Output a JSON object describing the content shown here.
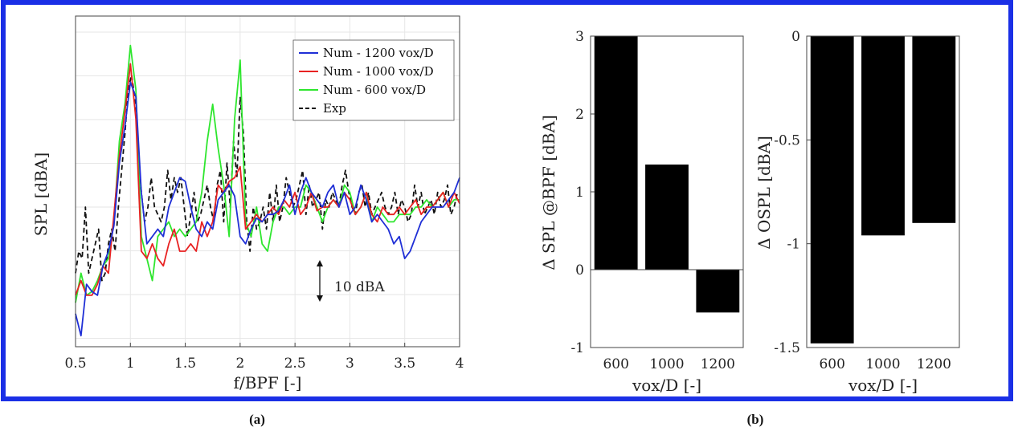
{
  "colors": {
    "frame": "#1a2fe6",
    "blue": "#1f2fd6",
    "red": "#e82222",
    "green": "#2ee62e",
    "exp": "#111111",
    "bar": "#000000",
    "grid": "#e6e6e6"
  },
  "captions": {
    "a": "(a)",
    "b": "(b)"
  },
  "annotation": {
    "scale_label": "10 dBA"
  },
  "chart_data": [
    {
      "type": "line",
      "xlabel": "f/BPF [-]",
      "ylabel": "SPL [dBA]",
      "xlim": [
        0.5,
        4
      ],
      "x_ticks": [
        "0.5",
        "1",
        "1.5",
        "2",
        "2.5",
        "3",
        "3.5",
        "4"
      ],
      "grid": true,
      "legend_position": "top-right",
      "series": [
        {
          "name": "Num - 1200 vox/D",
          "color": "#1f2fd6",
          "style": "solid",
          "x": [
            0.5,
            0.55,
            0.6,
            0.65,
            0.7,
            0.75,
            0.8,
            0.85,
            0.9,
            0.95,
            1.0,
            1.05,
            1.1,
            1.15,
            1.2,
            1.25,
            1.3,
            1.35,
            1.4,
            1.45,
            1.5,
            1.55,
            1.6,
            1.65,
            1.7,
            1.75,
            1.8,
            1.85,
            1.9,
            1.95,
            2.0,
            2.05,
            2.1,
            2.15,
            2.2,
            2.25,
            2.3,
            2.35,
            2.4,
            2.45,
            2.5,
            2.55,
            2.6,
            2.65,
            2.7,
            2.75,
            2.8,
            2.85,
            2.9,
            2.95,
            3.0,
            3.05,
            3.1,
            3.15,
            3.2,
            3.25,
            3.3,
            3.35,
            3.4,
            3.45,
            3.5,
            3.55,
            3.6,
            3.65,
            3.7,
            3.75,
            3.8,
            3.85,
            3.9,
            3.95,
            4.0
          ],
          "y": [
            -14.5,
            -17.5,
            -10.5,
            -11.5,
            -12,
            -8,
            -6,
            -2.5,
            6,
            11,
            17,
            15,
            2,
            -5,
            -4,
            -3,
            -4,
            0,
            2,
            4,
            3.5,
            0,
            -3,
            -4,
            -2,
            -3,
            1,
            2,
            3,
            1.5,
            -4,
            -5,
            -3,
            -1.5,
            -2,
            -1,
            -1,
            -0.5,
            1,
            3,
            -1,
            2,
            4,
            2,
            1,
            0,
            2,
            3,
            0,
            2,
            -1,
            0,
            3,
            1,
            -2,
            -1,
            -2,
            -3,
            -5,
            -4,
            -7,
            -6,
            -4,
            -2,
            -1,
            0,
            0,
            0,
            1,
            2,
            4
          ]
        },
        {
          "name": "Num - 1000 vox/D",
          "color": "#e82222",
          "style": "solid",
          "x": [
            0.5,
            0.55,
            0.6,
            0.65,
            0.7,
            0.75,
            0.8,
            0.85,
            0.9,
            0.95,
            1.0,
            1.05,
            1.1,
            1.15,
            1.2,
            1.25,
            1.3,
            1.35,
            1.4,
            1.45,
            1.5,
            1.55,
            1.6,
            1.65,
            1.7,
            1.75,
            1.8,
            1.85,
            1.9,
            1.95,
            2.0,
            2.05,
            2.1,
            2.15,
            2.2,
            2.25,
            2.3,
            2.35,
            2.4,
            2.45,
            2.5,
            2.55,
            2.6,
            2.65,
            2.7,
            2.75,
            2.8,
            2.85,
            2.9,
            2.95,
            3.0,
            3.05,
            3.1,
            3.15,
            3.2,
            3.25,
            3.3,
            3.35,
            3.4,
            3.45,
            3.5,
            3.55,
            3.6,
            3.65,
            3.7,
            3.75,
            3.8,
            3.85,
            3.9,
            3.95,
            4.0
          ],
          "y": [
            -12,
            -10,
            -12,
            -12,
            -10.5,
            -8,
            -9,
            -1,
            7,
            13,
            19.5,
            12,
            -6,
            -7,
            -5,
            -7,
            -8,
            -5,
            -3,
            -6,
            -6,
            -5,
            -6,
            -2,
            -4,
            -2,
            3,
            2,
            3.5,
            4,
            5.5,
            -3,
            -2,
            -1,
            -2,
            -1,
            0,
            -1,
            1,
            0,
            2,
            -1,
            0,
            2,
            -0.5,
            0,
            0,
            1,
            0,
            2,
            1,
            -1,
            0,
            2,
            -1,
            -2,
            0,
            -1,
            -1,
            0,
            -1,
            0,
            1,
            -1,
            0,
            0,
            1,
            2,
            0,
            2,
            0.5
          ]
        },
        {
          "name": "Num - 600 vox/D",
          "color": "#2ee62e",
          "style": "solid",
          "x": [
            0.5,
            0.55,
            0.6,
            0.65,
            0.7,
            0.75,
            0.8,
            0.85,
            0.9,
            0.95,
            1.0,
            1.05,
            1.1,
            1.15,
            1.2,
            1.25,
            1.3,
            1.35,
            1.4,
            1.45,
            1.5,
            1.55,
            1.6,
            1.65,
            1.7,
            1.75,
            1.8,
            1.85,
            1.9,
            1.95,
            2.0,
            2.05,
            2.1,
            2.15,
            2.2,
            2.25,
            2.3,
            2.35,
            2.4,
            2.45,
            2.5,
            2.55,
            2.6,
            2.65,
            2.7,
            2.75,
            2.8,
            2.85,
            2.9,
            2.95,
            3.0,
            3.05,
            3.1,
            3.15,
            3.2,
            3.25,
            3.3,
            3.35,
            3.4,
            3.45,
            3.5,
            3.55,
            3.6,
            3.65,
            3.7,
            3.75,
            3.8,
            3.85,
            3.9,
            3.95,
            4.0
          ],
          "y": [
            -13,
            -9,
            -12,
            -11.5,
            -10,
            -8,
            -7,
            -2,
            9,
            14,
            22,
            16,
            -4,
            -7,
            -10,
            -4,
            -3,
            -2,
            -4,
            -3,
            -4,
            -3,
            -2,
            2,
            9,
            14,
            8,
            3,
            -4,
            12,
            20,
            -2,
            -4,
            0,
            -5,
            -6,
            -2,
            0,
            0,
            -1,
            0,
            0,
            3,
            2,
            0,
            -2,
            0,
            1,
            0,
            3,
            2,
            -1,
            0,
            2,
            -2,
            0,
            -1,
            -2,
            -2,
            -1,
            -1,
            -1,
            0,
            0,
            1,
            0,
            1,
            2,
            0,
            1,
            1
          ]
        },
        {
          "name": "Exp",
          "color": "#111111",
          "style": "dashed",
          "x": [
            0.5,
            0.53,
            0.56,
            0.59,
            0.62,
            0.65,
            0.68,
            0.71,
            0.74,
            0.77,
            0.8,
            0.83,
            0.86,
            0.89,
            0.92,
            0.95,
            0.98,
            1.01,
            1.04,
            1.07,
            1.1,
            1.13,
            1.16,
            1.19,
            1.22,
            1.25,
            1.28,
            1.31,
            1.34,
            1.37,
            1.4,
            1.43,
            1.46,
            1.49,
            1.52,
            1.55,
            1.58,
            1.61,
            1.64,
            1.67,
            1.7,
            1.73,
            1.76,
            1.79,
            1.82,
            1.85,
            1.88,
            1.91,
            1.94,
            1.97,
            2.0,
            2.03,
            2.06,
            2.09,
            2.12,
            2.15,
            2.18,
            2.21,
            2.24,
            2.27,
            2.3,
            2.33,
            2.36,
            2.39,
            2.42,
            2.45,
            2.48,
            2.51,
            2.54,
            2.57,
            2.6,
            2.63,
            2.66,
            2.69,
            2.72,
            2.75,
            2.78,
            2.81,
            2.84,
            2.87,
            2.9,
            2.93,
            2.96,
            2.99,
            3.02,
            3.05,
            3.08,
            3.11,
            3.14,
            3.17,
            3.2,
            3.23,
            3.26,
            3.29,
            3.32,
            3.35,
            3.38,
            3.41,
            3.44,
            3.47,
            3.5,
            3.53,
            3.56,
            3.59,
            3.62,
            3.65,
            3.68,
            3.71,
            3.74,
            3.77,
            3.8,
            3.83,
            3.86,
            3.89,
            3.92,
            3.95,
            3.98
          ],
          "y": [
            -9,
            -6,
            -7,
            0,
            -9,
            -7,
            -5,
            -3,
            -10,
            -9,
            -5,
            -3,
            -6,
            0,
            5,
            10,
            16,
            18,
            15,
            8,
            2,
            -2,
            0,
            4,
            0,
            -1,
            -2,
            0,
            5,
            1,
            4,
            2,
            4,
            0,
            -4,
            -1,
            2,
            -2,
            -1,
            1,
            3,
            0,
            -2,
            3,
            5,
            -2,
            6,
            0,
            9,
            4,
            15,
            10,
            -2,
            -6,
            0,
            -3,
            -2,
            0,
            -3,
            2,
            -2,
            3,
            -2,
            0,
            4,
            2,
            0,
            1,
            3,
            5,
            -1,
            3,
            0,
            1,
            2,
            -3,
            1,
            0,
            2,
            1,
            0,
            3,
            5,
            2,
            0,
            -1,
            2,
            3,
            0,
            2,
            -1,
            0,
            1,
            2,
            0,
            -1,
            0,
            2,
            -1,
            1,
            0,
            -2,
            -1,
            3,
            0,
            2,
            -1,
            0,
            1,
            -1,
            2,
            0,
            1,
            3,
            -1,
            0,
            2
          ]
        }
      ]
    },
    {
      "type": "bar",
      "xlabel": "vox/D [-]",
      "ylabel": "Δ SPL @BPF [dBA]",
      "categories": [
        "600",
        "1000",
        "1200"
      ],
      "values": [
        3,
        1.35,
        -0.55
      ],
      "ylim": [
        -1,
        3
      ],
      "y_ticks": [
        "-1",
        "0",
        "1",
        "2",
        "3"
      ]
    },
    {
      "type": "bar",
      "xlabel": "vox/D [-]",
      "ylabel": "Δ OSPL [dBA]",
      "categories": [
        "600",
        "1000",
        "1200"
      ],
      "values": [
        -1.48,
        -0.96,
        -0.9
      ],
      "ylim": [
        -1.5,
        0
      ],
      "y_ticks": [
        "-1.5",
        "-1",
        "-0.5",
        "0"
      ]
    }
  ]
}
